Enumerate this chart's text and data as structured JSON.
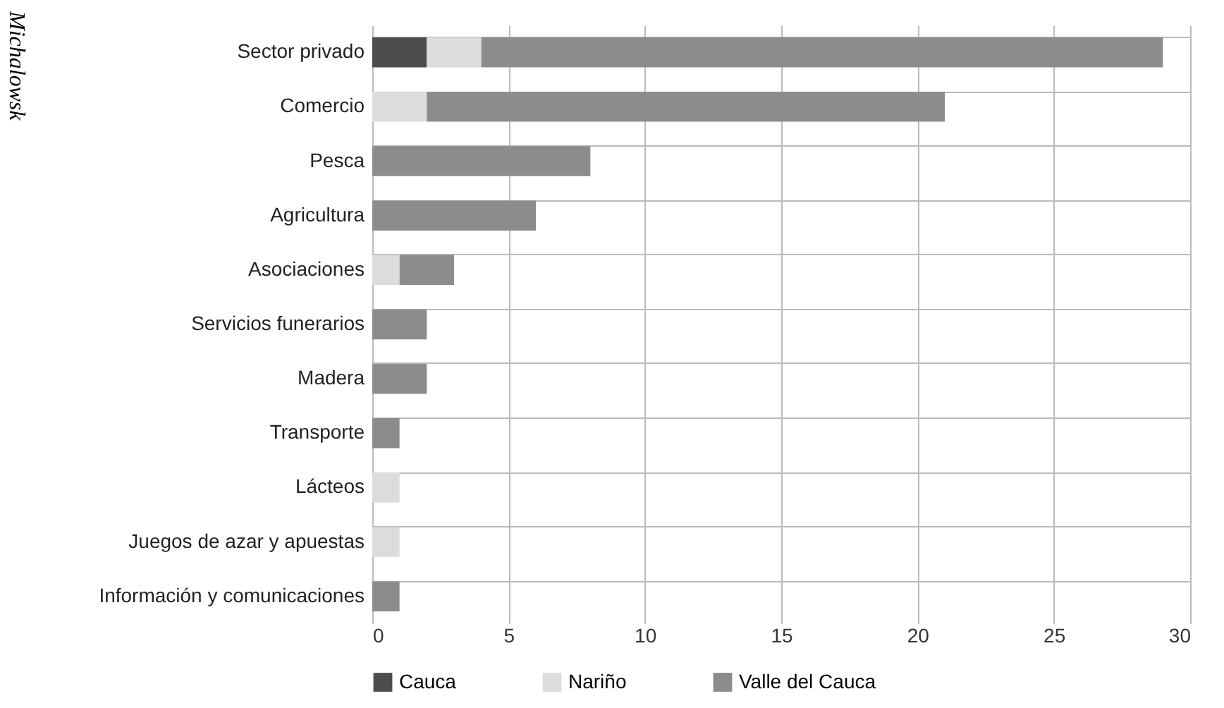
{
  "chart_data": {
    "type": "bar",
    "orientation": "horizontal",
    "stacked": true,
    "categories": [
      "Sector privado",
      "Comercio",
      "Pesca",
      "Agricultura",
      "Asociaciones",
      "Servicios funerarios",
      "Madera",
      "Transporte",
      "Lácteos",
      "Juegos de azar y apuestas",
      "Información y comunicaciones"
    ],
    "series": [
      {
        "name": "Cauca",
        "color": "#4d4d4d",
        "values": [
          2,
          null,
          null,
          null,
          null,
          null,
          null,
          null,
          null,
          null,
          null
        ]
      },
      {
        "name": "Nariño",
        "color": "#dcdcdc",
        "values": [
          2,
          2,
          null,
          null,
          1,
          null,
          null,
          null,
          1,
          1,
          null
        ]
      },
      {
        "name": "Valle del Cauca",
        "color": "#8c8c8c",
        "values": [
          25,
          19,
          8,
          6,
          2,
          2,
          2,
          1,
          null,
          null,
          1
        ]
      }
    ],
    "xlim": [
      0,
      30
    ],
    "xticks": [
      0,
      5,
      10,
      15,
      20,
      25,
      30
    ],
    "grid": true,
    "legend": "bottom",
    "annotations": [
      "Michalowsk"
    ]
  }
}
